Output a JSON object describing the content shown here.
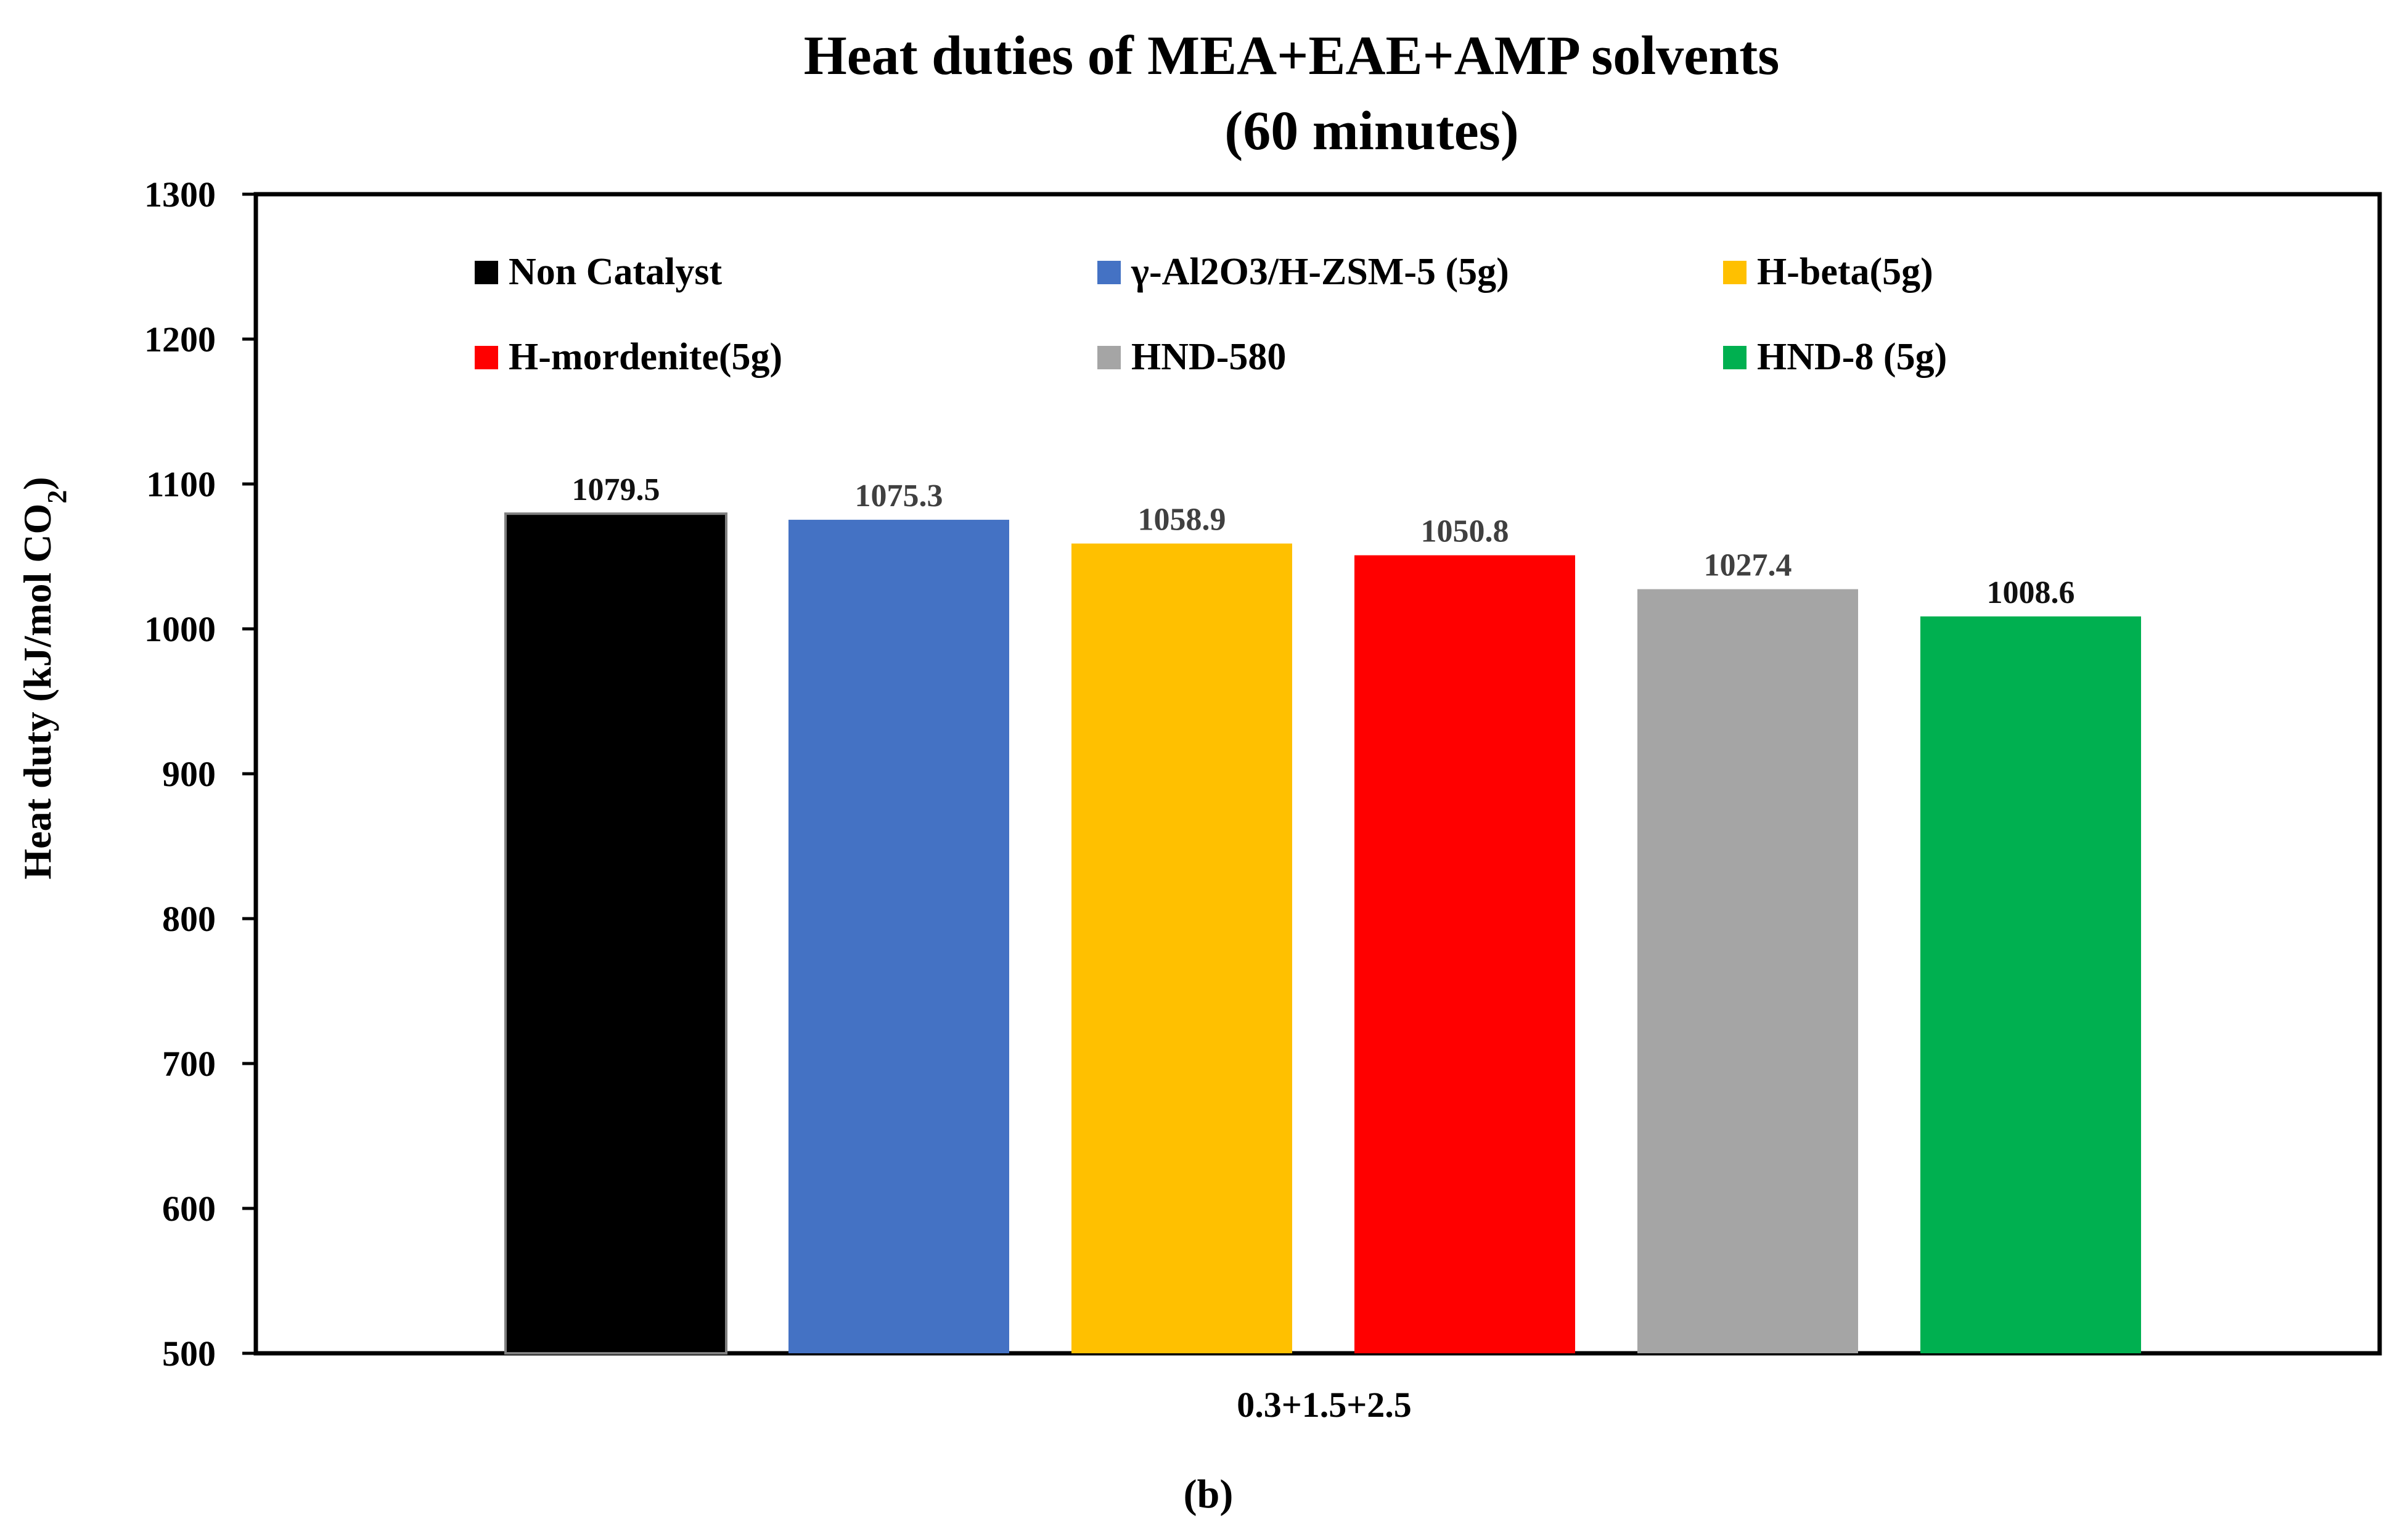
{
  "chart_data": {
    "type": "bar",
    "title": "Heat duties of MEA+EAE+AMP solvents",
    "subtitle": "(60 minutes)",
    "ylabel": "Heat duty (kJ/mol CO",
    "ylabel_sub": "2",
    "ylabel_end": ")",
    "xlabel": "",
    "categories": [
      "0.3+1.5+2.5"
    ],
    "ylim": [
      500,
      1300
    ],
    "yticks": [
      "500",
      "600",
      "700",
      "800",
      "900",
      "1000",
      "1100",
      "1200",
      "1300"
    ],
    "grid": false,
    "legend_position": "top",
    "series": [
      {
        "name": "Non Catalyst",
        "values": [
          1079.5
        ],
        "color": "#000000",
        "label_color": "#111111"
      },
      {
        "name": "γ-Al2O3/H-ZSM-5 (5g)",
        "values": [
          1075.3
        ],
        "color": "#4472C4",
        "label_color": "#404040"
      },
      {
        "name": "H-beta(5g)",
        "values": [
          1058.9
        ],
        "color": "#FFC000",
        "label_color": "#404040"
      },
      {
        "name": "H-mordenite(5g)",
        "values": [
          1050.8
        ],
        "color": "#FF0000",
        "label_color": "#404040"
      },
      {
        "name": "HND-580",
        "values": [
          1027.4
        ],
        "color": "#A5A5A5",
        "label_color": "#404040"
      },
      {
        "name": "HND-8 (5g)",
        "values": [
          1008.6
        ],
        "color": "#00B050",
        "label_color": "#111111"
      }
    ],
    "data_labels": [
      "1079.5",
      "1075.3",
      "1058.9",
      "1050.8",
      "1027.4",
      "1008.6"
    ]
  },
  "figure": {
    "panel_label": "(b)"
  }
}
